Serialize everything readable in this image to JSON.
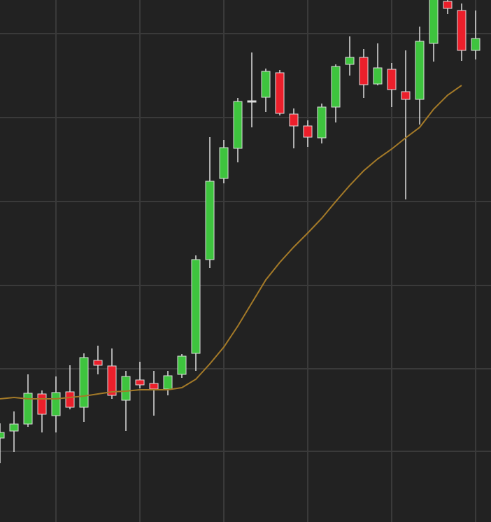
{
  "chart_data": {
    "type": "candlestick",
    "categories": [
      null,
      null,
      null,
      null,
      null,
      null,
      null,
      null,
      null,
      null,
      null,
      null,
      null,
      null,
      null,
      null,
      null,
      null,
      null,
      null,
      null,
      null,
      null,
      null,
      null,
      null,
      null,
      null,
      null,
      null,
      null,
      null,
      null,
      null,
      null
    ],
    "open": [
      120,
      130,
      140,
      183,
      152,
      186,
      164,
      231,
      223,
      174,
      203,
      198,
      190,
      211,
      241,
      375,
      491,
      534,
      602,
      607,
      642,
      583,
      566,
      549,
      593,
      654,
      664,
      626,
      647,
      615,
      604,
      684,
      744,
      731,
      674
    ],
    "high": [
      141,
      158,
      211,
      188,
      208,
      224,
      241,
      252,
      248,
      216,
      229,
      216,
      216,
      240,
      381,
      550,
      546,
      606,
      671,
      648,
      646,
      591,
      574,
      598,
      654,
      694,
      676,
      684,
      656,
      674,
      708,
      760,
      760,
      741,
      731
    ],
    "low": [
      84,
      100,
      136,
      128,
      128,
      161,
      143,
      211,
      176,
      130,
      191,
      152,
      181,
      206,
      216,
      363,
      484,
      514,
      564,
      586,
      581,
      534,
      536,
      541,
      571,
      638,
      606,
      624,
      593,
      461,
      568,
      658,
      726,
      659,
      661
    ],
    "close": [
      128,
      140,
      184,
      154,
      185,
      164,
      235,
      224,
      181,
      208,
      196,
      190,
      209,
      237,
      375,
      487,
      535,
      601,
      602,
      644,
      584,
      566,
      550,
      593,
      651,
      664,
      625,
      649,
      618,
      604,
      687,
      756,
      734,
      674,
      691
    ],
    "up_color": "#3ec43e",
    "down_color": "#ec1f2b",
    "wick_color": "#dcdcdc",
    "ma": {
      "color": "#a47a28",
      "values": [
        176,
        178,
        176,
        176,
        176,
        178,
        180,
        183,
        186,
        187,
        189,
        189,
        189,
        192,
        204,
        226,
        250,
        280,
        313,
        346,
        371,
        393,
        413,
        434,
        458,
        481,
        502,
        519,
        533,
        549,
        564,
        590,
        610,
        624,
        null
      ]
    },
    "ylim": [
      0,
      746
    ],
    "yticks": [
      101,
      219,
      338,
      458,
      578,
      698
    ],
    "xlim": [
      0,
      35.1
    ],
    "xticks": [
      4,
      10,
      16,
      22,
      28,
      34
    ],
    "grid": true
  }
}
